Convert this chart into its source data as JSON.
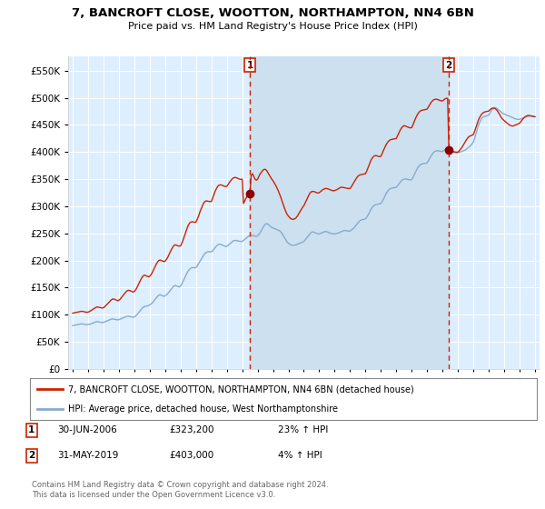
{
  "title": "7, BANCROFT CLOSE, WOOTTON, NORTHAMPTON, NN4 6BN",
  "subtitle": "Price paid vs. HM Land Registry's House Price Index (HPI)",
  "background_color": "#ffffff",
  "plot_background": "#ddeeff",
  "grid_color": "#ffffff",
  "sale1_label": "30-JUN-2006",
  "sale1_price": 323200,
  "sale1_hpi_pct": "23% ↑ HPI",
  "sale1_x": 2006.5,
  "sale2_label": "31-MAY-2019",
  "sale2_price": 403000,
  "sale2_hpi_pct": "4% ↑ HPI",
  "sale2_x": 2019.417,
  "legend_line1": "7, BANCROFT CLOSE, WOOTTON, NORTHAMPTON, NN4 6BN (detached house)",
  "legend_line2": "HPI: Average price, detached house, West Northamptonshire",
  "footer": "Contains HM Land Registry data © Crown copyright and database right 2024.\nThis data is licensed under the Open Government Licence v3.0.",
  "line_red": "#cc2200",
  "line_blue": "#88aacc",
  "highlight_color": "#cce0f0",
  "ylim_min": 0,
  "ylim_max": 577000,
  "yticks": [
    0,
    50000,
    100000,
    150000,
    200000,
    250000,
    300000,
    350000,
    400000,
    450000,
    500000,
    550000
  ],
  "xlim_min": 1994.7,
  "xlim_max": 2025.3,
  "hpi_x": [
    1995.0,
    1995.083,
    1995.167,
    1995.25,
    1995.333,
    1995.417,
    1995.5,
    1995.583,
    1995.667,
    1995.75,
    1995.833,
    1995.917,
    1996.0,
    1996.083,
    1996.167,
    1996.25,
    1996.333,
    1996.417,
    1996.5,
    1996.583,
    1996.667,
    1996.75,
    1996.833,
    1996.917,
    1997.0,
    1997.083,
    1997.167,
    1997.25,
    1997.333,
    1997.417,
    1997.5,
    1997.583,
    1997.667,
    1997.75,
    1997.833,
    1997.917,
    1998.0,
    1998.083,
    1998.167,
    1998.25,
    1998.333,
    1998.417,
    1998.5,
    1998.583,
    1998.667,
    1998.75,
    1998.833,
    1998.917,
    1999.0,
    1999.083,
    1999.167,
    1999.25,
    1999.333,
    1999.417,
    1999.5,
    1999.583,
    1999.667,
    1999.75,
    1999.833,
    1999.917,
    2000.0,
    2000.083,
    2000.167,
    2000.25,
    2000.333,
    2000.417,
    2000.5,
    2000.583,
    2000.667,
    2000.75,
    2000.833,
    2000.917,
    2001.0,
    2001.083,
    2001.167,
    2001.25,
    2001.333,
    2001.417,
    2001.5,
    2001.583,
    2001.667,
    2001.75,
    2001.833,
    2001.917,
    2002.0,
    2002.083,
    2002.167,
    2002.25,
    2002.333,
    2002.417,
    2002.5,
    2002.583,
    2002.667,
    2002.75,
    2002.833,
    2002.917,
    2003.0,
    2003.083,
    2003.167,
    2003.25,
    2003.333,
    2003.417,
    2003.5,
    2003.583,
    2003.667,
    2003.75,
    2003.833,
    2003.917,
    2004.0,
    2004.083,
    2004.167,
    2004.25,
    2004.333,
    2004.417,
    2004.5,
    2004.583,
    2004.667,
    2004.75,
    2004.833,
    2004.917,
    2005.0,
    2005.083,
    2005.167,
    2005.25,
    2005.333,
    2005.417,
    2005.5,
    2005.583,
    2005.667,
    2005.75,
    2005.833,
    2005.917,
    2006.0,
    2006.083,
    2006.167,
    2006.25,
    2006.333,
    2006.417,
    2006.5,
    2006.583,
    2006.667,
    2006.75,
    2006.833,
    2006.917,
    2007.0,
    2007.083,
    2007.167,
    2007.25,
    2007.333,
    2007.417,
    2007.5,
    2007.583,
    2007.667,
    2007.75,
    2007.833,
    2007.917,
    2008.0,
    2008.083,
    2008.167,
    2008.25,
    2008.333,
    2008.417,
    2008.5,
    2008.583,
    2008.667,
    2008.75,
    2008.833,
    2008.917,
    2009.0,
    2009.083,
    2009.167,
    2009.25,
    2009.333,
    2009.417,
    2009.5,
    2009.583,
    2009.667,
    2009.75,
    2009.833,
    2009.917,
    2010.0,
    2010.083,
    2010.167,
    2010.25,
    2010.333,
    2010.417,
    2010.5,
    2010.583,
    2010.667,
    2010.75,
    2010.833,
    2010.917,
    2011.0,
    2011.083,
    2011.167,
    2011.25,
    2011.333,
    2011.417,
    2011.5,
    2011.583,
    2011.667,
    2011.75,
    2011.833,
    2011.917,
    2012.0,
    2012.083,
    2012.167,
    2012.25,
    2012.333,
    2012.417,
    2012.5,
    2012.583,
    2012.667,
    2012.75,
    2012.833,
    2012.917,
    2013.0,
    2013.083,
    2013.167,
    2013.25,
    2013.333,
    2013.417,
    2013.5,
    2013.583,
    2013.667,
    2013.75,
    2013.833,
    2013.917,
    2014.0,
    2014.083,
    2014.167,
    2014.25,
    2014.333,
    2014.417,
    2014.5,
    2014.583,
    2014.667,
    2014.75,
    2014.833,
    2014.917,
    2015.0,
    2015.083,
    2015.167,
    2015.25,
    2015.333,
    2015.417,
    2015.5,
    2015.583,
    2015.667,
    2015.75,
    2015.833,
    2015.917,
    2016.0,
    2016.083,
    2016.167,
    2016.25,
    2016.333,
    2016.417,
    2016.5,
    2016.583,
    2016.667,
    2016.75,
    2016.833,
    2016.917,
    2017.0,
    2017.083,
    2017.167,
    2017.25,
    2017.333,
    2017.417,
    2017.5,
    2017.583,
    2017.667,
    2017.75,
    2017.833,
    2017.917,
    2018.0,
    2018.083,
    2018.167,
    2018.25,
    2018.333,
    2018.417,
    2018.5,
    2018.583,
    2018.667,
    2018.75,
    2018.833,
    2018.917,
    2019.0,
    2019.083,
    2019.167,
    2019.25,
    2019.333,
    2019.417,
    2019.5,
    2019.583,
    2019.667,
    2019.75,
    2019.833,
    2019.917,
    2020.0,
    2020.083,
    2020.167,
    2020.25,
    2020.333,
    2020.417,
    2020.5,
    2020.583,
    2020.667,
    2020.75,
    2020.833,
    2020.917,
    2021.0,
    2021.083,
    2021.167,
    2021.25,
    2021.333,
    2021.417,
    2021.5,
    2021.583,
    2021.667,
    2021.75,
    2021.833,
    2021.917,
    2022.0,
    2022.083,
    2022.167,
    2022.25,
    2022.333,
    2022.417,
    2022.5,
    2022.583,
    2022.667,
    2022.75,
    2022.833,
    2022.917,
    2023.0,
    2023.083,
    2023.167,
    2023.25,
    2023.333,
    2023.417,
    2023.5,
    2023.583,
    2023.667,
    2023.75,
    2023.833,
    2023.917,
    2024.0,
    2024.083,
    2024.167,
    2024.25,
    2024.333,
    2024.417,
    2024.5,
    2024.583,
    2024.667,
    2024.75,
    2024.833,
    2024.917,
    2025.0
  ],
  "hpi_v": [
    80000,
    80500,
    81000,
    81500,
    82000,
    82500,
    83000,
    83500,
    83000,
    82500,
    82000,
    81500,
    82000,
    82500,
    83000,
    84000,
    85000,
    86000,
    87000,
    87500,
    87000,
    86500,
    86000,
    85500,
    86000,
    87000,
    88000,
    89000,
    90000,
    91000,
    92000,
    92500,
    92000,
    91500,
    91000,
    90500,
    91000,
    92000,
    93000,
    94000,
    95000,
    96000,
    97000,
    97500,
    97000,
    96500,
    96000,
    95500,
    96000,
    98000,
    100000,
    103000,
    106000,
    109000,
    112000,
    114000,
    115000,
    116000,
    116500,
    117000,
    118000,
    120000,
    122000,
    125000,
    128000,
    131000,
    134000,
    136000,
    137000,
    136000,
    135000,
    134000,
    135000,
    137000,
    139000,
    142000,
    145000,
    148000,
    151000,
    153000,
    154000,
    153000,
    152000,
    151000,
    153000,
    157000,
    162000,
    167000,
    172000,
    177000,
    181000,
    184000,
    186000,
    187000,
    187000,
    186500,
    187000,
    190000,
    194000,
    198000,
    202000,
    206000,
    210000,
    213000,
    215000,
    216000,
    216500,
    216000,
    216000,
    218000,
    221000,
    224000,
    227000,
    229000,
    230000,
    230000,
    229000,
    228000,
    227000,
    226000,
    226000,
    228000,
    230000,
    232000,
    234000,
    236000,
    237000,
    237000,
    236500,
    236000,
    235500,
    235000,
    235500,
    237000,
    239000,
    241000,
    243000,
    245000,
    246000,
    246500,
    246000,
    245500,
    245000,
    244500,
    245000,
    248000,
    252000,
    256000,
    260000,
    264000,
    267000,
    268000,
    267000,
    265000,
    263000,
    261000,
    260000,
    259000,
    258000,
    257000,
    256000,
    255000,
    253000,
    250000,
    246000,
    242000,
    238000,
    234000,
    232000,
    230000,
    229000,
    228000,
    228000,
    228500,
    229000,
    230000,
    231000,
    232000,
    233000,
    234000,
    235000,
    238000,
    241000,
    244000,
    247000,
    250000,
    252000,
    253000,
    252000,
    251000,
    250000,
    249000,
    249000,
    250000,
    251000,
    252000,
    253000,
    253500,
    253000,
    252000,
    251000,
    250000,
    249500,
    249000,
    249000,
    249500,
    250000,
    251000,
    252000,
    253000,
    254000,
    255000,
    255500,
    255000,
    254500,
    254000,
    254500,
    256000,
    258000,
    260000,
    263000,
    266000,
    269000,
    272000,
    274000,
    275000,
    275500,
    276000,
    277000,
    280000,
    284000,
    288000,
    293000,
    297000,
    300000,
    302000,
    303000,
    303500,
    304000,
    304500,
    305000,
    309000,
    313000,
    318000,
    323000,
    327000,
    330000,
    332000,
    333000,
    333500,
    334000,
    334500,
    335000,
    338000,
    341000,
    344000,
    347000,
    349000,
    350000,
    350500,
    350000,
    349500,
    349000,
    348500,
    349000,
    353000,
    358000,
    363000,
    368000,
    372000,
    375000,
    377000,
    378000,
    378500,
    379000,
    379500,
    380000,
    384000,
    388000,
    392000,
    396000,
    399000,
    401000,
    402000,
    402500,
    402000,
    401500,
    401000,
    401000,
    403000,
    404500,
    406000,
    407000,
    403000,
    402000,
    401000,
    400000,
    399500,
    399000,
    398500,
    399000,
    399500,
    400000,
    401000,
    402000,
    403000,
    404000,
    406000,
    408000,
    410000,
    412000,
    415000,
    418000,
    425000,
    433000,
    441000,
    449000,
    455000,
    460000,
    463000,
    465000,
    466000,
    466500,
    467000,
    468000,
    472000,
    476000,
    479000,
    481000,
    482000,
    481000,
    479000,
    477000,
    475000,
    473000,
    471000,
    470000,
    469000,
    468000,
    467000,
    466000,
    465000,
    464000,
    463000,
    462000,
    461000,
    460500,
    460000,
    460500,
    461000,
    462000,
    463000,
    464000,
    465000,
    465500,
    466000,
    466500,
    466500,
    466000,
    465500,
    465000
  ],
  "prop_x": [
    1995.0,
    1995.083,
    1995.167,
    1995.25,
    1995.333,
    1995.417,
    1995.5,
    1995.583,
    1995.667,
    1995.75,
    1995.833,
    1995.917,
    1996.0,
    1996.083,
    1996.167,
    1996.25,
    1996.333,
    1996.417,
    1996.5,
    1996.583,
    1996.667,
    1996.75,
    1996.833,
    1996.917,
    1997.0,
    1997.083,
    1997.167,
    1997.25,
    1997.333,
    1997.417,
    1997.5,
    1997.583,
    1997.667,
    1997.75,
    1997.833,
    1997.917,
    1998.0,
    1998.083,
    1998.167,
    1998.25,
    1998.333,
    1998.417,
    1998.5,
    1998.583,
    1998.667,
    1998.75,
    1998.833,
    1998.917,
    1999.0,
    1999.083,
    1999.167,
    1999.25,
    1999.333,
    1999.417,
    1999.5,
    1999.583,
    1999.667,
    1999.75,
    1999.833,
    1999.917,
    2000.0,
    2000.083,
    2000.167,
    2000.25,
    2000.333,
    2000.417,
    2000.5,
    2000.583,
    2000.667,
    2000.75,
    2000.833,
    2000.917,
    2001.0,
    2001.083,
    2001.167,
    2001.25,
    2001.333,
    2001.417,
    2001.5,
    2001.583,
    2001.667,
    2001.75,
    2001.833,
    2001.917,
    2002.0,
    2002.083,
    2002.167,
    2002.25,
    2002.333,
    2002.417,
    2002.5,
    2002.583,
    2002.667,
    2002.75,
    2002.833,
    2002.917,
    2003.0,
    2003.083,
    2003.167,
    2003.25,
    2003.333,
    2003.417,
    2003.5,
    2003.583,
    2003.667,
    2003.75,
    2003.833,
    2003.917,
    2004.0,
    2004.083,
    2004.167,
    2004.25,
    2004.333,
    2004.417,
    2004.5,
    2004.583,
    2004.667,
    2004.75,
    2004.833,
    2004.917,
    2005.0,
    2005.083,
    2005.167,
    2005.25,
    2005.333,
    2005.417,
    2005.5,
    2005.583,
    2005.667,
    2005.75,
    2005.833,
    2005.917,
    2006.0,
    2006.083,
    2006.167,
    2006.25,
    2006.333,
    2006.417,
    2006.5,
    2006.583,
    2006.667,
    2006.75,
    2006.833,
    2006.917,
    2007.0,
    2007.083,
    2007.167,
    2007.25,
    2007.333,
    2007.417,
    2007.5,
    2007.583,
    2007.667,
    2007.75,
    2007.833,
    2007.917,
    2008.0,
    2008.083,
    2008.167,
    2008.25,
    2008.333,
    2008.417,
    2008.5,
    2008.583,
    2008.667,
    2008.75,
    2008.833,
    2008.917,
    2009.0,
    2009.083,
    2009.167,
    2009.25,
    2009.333,
    2009.417,
    2009.5,
    2009.583,
    2009.667,
    2009.75,
    2009.833,
    2009.917,
    2010.0,
    2010.083,
    2010.167,
    2010.25,
    2010.333,
    2010.417,
    2010.5,
    2010.583,
    2010.667,
    2010.75,
    2010.833,
    2010.917,
    2011.0,
    2011.083,
    2011.167,
    2011.25,
    2011.333,
    2011.417,
    2011.5,
    2011.583,
    2011.667,
    2011.75,
    2011.833,
    2011.917,
    2012.0,
    2012.083,
    2012.167,
    2012.25,
    2012.333,
    2012.417,
    2012.5,
    2012.583,
    2012.667,
    2012.75,
    2012.833,
    2012.917,
    2013.0,
    2013.083,
    2013.167,
    2013.25,
    2013.333,
    2013.417,
    2013.5,
    2013.583,
    2013.667,
    2013.75,
    2013.833,
    2013.917,
    2014.0,
    2014.083,
    2014.167,
    2014.25,
    2014.333,
    2014.417,
    2014.5,
    2014.583,
    2014.667,
    2014.75,
    2014.833,
    2014.917,
    2015.0,
    2015.083,
    2015.167,
    2015.25,
    2015.333,
    2015.417,
    2015.5,
    2015.583,
    2015.667,
    2015.75,
    2015.833,
    2015.917,
    2016.0,
    2016.083,
    2016.167,
    2016.25,
    2016.333,
    2016.417,
    2016.5,
    2016.583,
    2016.667,
    2016.75,
    2016.833,
    2016.917,
    2017.0,
    2017.083,
    2017.167,
    2017.25,
    2017.333,
    2017.417,
    2017.5,
    2017.583,
    2017.667,
    2017.75,
    2017.833,
    2017.917,
    2018.0,
    2018.083,
    2018.167,
    2018.25,
    2018.333,
    2018.417,
    2018.5,
    2018.583,
    2018.667,
    2018.75,
    2018.833,
    2018.917,
    2019.0,
    2019.083,
    2019.167,
    2019.25,
    2019.333,
    2019.417,
    2019.5,
    2019.583,
    2019.667,
    2019.75,
    2019.833,
    2019.917,
    2020.0,
    2020.083,
    2020.167,
    2020.25,
    2020.333,
    2020.417,
    2020.5,
    2020.583,
    2020.667,
    2020.75,
    2020.833,
    2020.917,
    2021.0,
    2021.083,
    2021.167,
    2021.25,
    2021.333,
    2021.417,
    2021.5,
    2021.583,
    2021.667,
    2021.75,
    2021.833,
    2021.917,
    2022.0,
    2022.083,
    2022.167,
    2022.25,
    2022.333,
    2022.417,
    2022.5,
    2022.583,
    2022.667,
    2022.75,
    2022.833,
    2022.917,
    2023.0,
    2023.083,
    2023.167,
    2023.25,
    2023.333,
    2023.417,
    2023.5,
    2023.583,
    2023.667,
    2023.75,
    2023.833,
    2023.917,
    2024.0,
    2024.083,
    2024.167,
    2024.25,
    2024.333,
    2024.417,
    2024.5,
    2024.583,
    2024.667,
    2024.75,
    2024.833,
    2024.917,
    2025.0
  ],
  "prop_v": [
    103000,
    103500,
    104000,
    104500,
    105000,
    105500,
    106000,
    106500,
    106000,
    105500,
    105000,
    104500,
    105000,
    106000,
    107500,
    109000,
    110500,
    112000,
    113500,
    114500,
    114000,
    113500,
    113000,
    112500,
    113000,
    115000,
    117500,
    120000,
    122500,
    125000,
    127500,
    129000,
    129000,
    128000,
    127000,
    126000,
    127000,
    129000,
    132000,
    135000,
    138000,
    141000,
    143500,
    145000,
    145000,
    144000,
    143000,
    142000,
    143000,
    146000,
    150000,
    155000,
    160000,
    165000,
    169000,
    172000,
    173000,
    172000,
    171000,
    170000,
    171000,
    174000,
    178000,
    183000,
    188000,
    193000,
    197000,
    200000,
    201000,
    200000,
    199000,
    198000,
    199000,
    202000,
    206000,
    211000,
    216000,
    221000,
    225000,
    228000,
    229000,
    228000,
    227000,
    226500,
    227000,
    232000,
    238000,
    245000,
    252000,
    259000,
    265000,
    269000,
    271000,
    271500,
    271000,
    270500,
    271000,
    276000,
    282000,
    289000,
    295000,
    301000,
    306000,
    309000,
    310000,
    309500,
    309000,
    308500,
    309000,
    315000,
    322000,
    328000,
    333000,
    337000,
    339000,
    339500,
    339000,
    338000,
    337000,
    336500,
    337000,
    340000,
    344000,
    347000,
    350000,
    352000,
    353000,
    353000,
    352000,
    351000,
    350000,
    349500,
    350000,
    305000,
    310000,
    315000,
    319000,
    323200,
    325000,
    357000,
    360000,
    355000,
    350000,
    348000,
    350000,
    355000,
    360000,
    363000,
    366000,
    368000,
    368000,
    366000,
    362000,
    358000,
    354000,
    350000,
    347000,
    343000,
    339000,
    334000,
    329000,
    323000,
    317000,
    310000,
    303000,
    296000,
    290000,
    285000,
    282000,
    279000,
    277000,
    276000,
    276000,
    277000,
    279000,
    282000,
    286000,
    290000,
    294000,
    298000,
    301000,
    306000,
    311000,
    316000,
    321000,
    325000,
    327000,
    327500,
    327000,
    326000,
    325000,
    324500,
    325000,
    327000,
    329000,
    331000,
    332000,
    333000,
    332500,
    332000,
    331000,
    330000,
    329000,
    328500,
    329000,
    330000,
    331000,
    332500,
    334000,
    335000,
    335000,
    334500,
    334000,
    333500,
    333000,
    332500,
    333000,
    336000,
    340000,
    344000,
    348000,
    352000,
    355000,
    357000,
    358000,
    358500,
    359000,
    359500,
    360000,
    365000,
    371000,
    377000,
    383000,
    388000,
    391000,
    393000,
    393500,
    393000,
    392000,
    391500,
    392000,
    397000,
    403000,
    408000,
    413000,
    417000,
    420000,
    422000,
    423000,
    423500,
    424000,
    424500,
    425000,
    430000,
    435000,
    440000,
    444000,
    447000,
    448500,
    448000,
    447000,
    446000,
    445000,
    444500,
    445000,
    450000,
    456000,
    462000,
    467000,
    471000,
    474000,
    476000,
    477000,
    477500,
    478000,
    478500,
    479000,
    483000,
    487000,
    491000,
    494000,
    496000,
    497000,
    497500,
    497000,
    496000,
    495000,
    494500,
    494000,
    496000,
    498000,
    499000,
    499000,
    403000,
    402000,
    401500,
    401000,
    400500,
    400000,
    399500,
    400000,
    402000,
    405000,
    408000,
    412000,
    416000,
    420000,
    424000,
    427000,
    429000,
    430000,
    431000,
    432000,
    438000,
    445000,
    452000,
    459000,
    464000,
    468000,
    471000,
    473000,
    474000,
    474500,
    475000,
    475500,
    478000,
    480000,
    481000,
    481000,
    480000,
    478000,
    475000,
    471000,
    467000,
    463000,
    460000,
    458000,
    456000,
    454000,
    452000,
    450000,
    449000,
    448000,
    448000,
    449000,
    450000,
    451000,
    452000,
    453000,
    456000,
    459000,
    462000,
    464000,
    466000,
    467000,
    467500,
    467000,
    466500,
    466000,
    465500,
    465000
  ]
}
